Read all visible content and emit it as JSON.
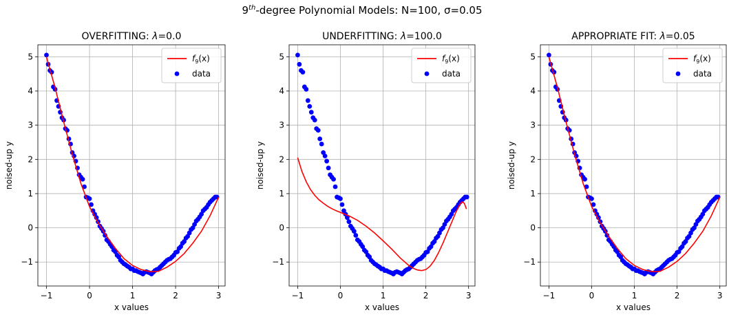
{
  "figure": {
    "suptitle": {
      "base": "9",
      "sup": "th",
      "rest": "-degree Polynomial Models: N=100, σ=0.05"
    }
  },
  "chart_data": [
    {
      "type": "scatter",
      "title": {
        "text": "OVERFITTING: ",
        "lambda": "λ",
        "value": "=0.0"
      },
      "xlabel": "x values",
      "ylabel": "noised-up y",
      "xlim": [
        -1.2,
        3.15
      ],
      "ylim": [
        -1.7,
        5.35
      ],
      "xticks": [
        -1,
        0,
        1,
        2,
        3
      ],
      "yticks": [
        -1,
        0,
        1,
        2,
        3,
        4,
        5
      ],
      "grid": true,
      "legend": {
        "position": "top-right",
        "entries": [
          {
            "label": {
              "f": "f",
              "sub": "9",
              "arg": "(x)"
            },
            "kind": "line",
            "color": "#ff0000"
          },
          {
            "label": "data",
            "kind": "marker",
            "color": "#0000ff"
          }
        ]
      },
      "series": [
        {
          "name": "data",
          "kind": "scatter",
          "color": "#0000ff",
          "x": [
            -1.0,
            -0.96,
            -0.92,
            -0.88,
            -0.84,
            -0.8,
            -0.76,
            -0.72,
            -0.68,
            -0.64,
            -0.6,
            -0.56,
            -0.52,
            -0.48,
            -0.44,
            -0.4,
            -0.36,
            -0.32,
            -0.28,
            -0.24,
            -0.2,
            -0.16,
            -0.12,
            -0.08,
            -0.04,
            0.0,
            0.04,
            0.08,
            0.12,
            0.16,
            0.2,
            0.24,
            0.28,
            0.32,
            0.36,
            0.4,
            0.44,
            0.48,
            0.52,
            0.56,
            0.6,
            0.64,
            0.68,
            0.72,
            0.76,
            0.8,
            0.84,
            0.88,
            0.92,
            0.96,
            1.0,
            1.04,
            1.08,
            1.12,
            1.16,
            1.2,
            1.24,
            1.28,
            1.32,
            1.36,
            1.4,
            1.44,
            1.48,
            1.52,
            1.56,
            1.6,
            1.64,
            1.68,
            1.72,
            1.76,
            1.8,
            1.84,
            1.88,
            1.92,
            1.96,
            2.0,
            2.04,
            2.08,
            2.12,
            2.16,
            2.2,
            2.24,
            2.28,
            2.32,
            2.36,
            2.4,
            2.44,
            2.48,
            2.52,
            2.56,
            2.6,
            2.64,
            2.68,
            2.72,
            2.76,
            2.8,
            2.84,
            2.88,
            2.92,
            2.96
          ],
          "y": [
            5.05,
            4.78,
            4.6,
            4.55,
            4.12,
            4.05,
            3.72,
            3.55,
            3.38,
            3.22,
            3.15,
            2.9,
            2.85,
            2.6,
            2.45,
            2.2,
            2.1,
            1.95,
            1.75,
            1.55,
            1.48,
            1.42,
            1.2,
            0.9,
            0.88,
            0.85,
            0.68,
            0.5,
            0.4,
            0.3,
            0.18,
            0.05,
            -0.02,
            -0.1,
            -0.22,
            -0.35,
            -0.4,
            -0.48,
            -0.55,
            -0.65,
            -0.7,
            -0.8,
            -0.85,
            -0.95,
            -1.0,
            -1.05,
            -1.08,
            -1.12,
            -1.15,
            -1.2,
            -1.2,
            -1.25,
            -1.25,
            -1.28,
            -1.3,
            -1.32,
            -1.35,
            -1.3,
            -1.28,
            -1.3,
            -1.32,
            -1.35,
            -1.3,
            -1.25,
            -1.22,
            -1.2,
            -1.15,
            -1.1,
            -1.05,
            -1.0,
            -0.95,
            -0.92,
            -0.9,
            -0.85,
            -0.8,
            -0.72,
            -0.7,
            -0.6,
            -0.55,
            -0.45,
            -0.4,
            -0.3,
            -0.25,
            -0.15,
            -0.05,
            0.0,
            0.1,
            0.2,
            0.25,
            0.32,
            0.4,
            0.5,
            0.55,
            0.6,
            0.68,
            0.75,
            0.8,
            0.85,
            0.9,
            0.9
          ]
        },
        {
          "name": "f9",
          "kind": "line",
          "color": "#ff0000",
          "x": [
            -1.0,
            -0.8,
            -0.6,
            -0.4,
            -0.2,
            0.0,
            0.2,
            0.4,
            0.6,
            0.8,
            1.0,
            1.2,
            1.4,
            1.5,
            1.6,
            1.8,
            2.0,
            2.2,
            2.4,
            2.6,
            2.8,
            3.0
          ],
          "y": [
            5.0,
            4.1,
            3.1,
            2.15,
            1.3,
            0.62,
            0.15,
            -0.25,
            -0.6,
            -0.9,
            -1.1,
            -1.22,
            -1.28,
            -1.28,
            -1.27,
            -1.15,
            -0.98,
            -0.75,
            -0.45,
            -0.1,
            0.35,
            0.9
          ]
        }
      ]
    },
    {
      "type": "scatter",
      "title": {
        "text": "UNDERFITTING: ",
        "lambda": "λ",
        "value": "=100.0"
      },
      "xlabel": "x values",
      "ylabel": "noised-up y",
      "xlim": [
        -1.2,
        3.15
      ],
      "ylim": [
        -1.7,
        5.35
      ],
      "xticks": [
        -1,
        0,
        1,
        2,
        3
      ],
      "yticks": [
        -1,
        0,
        1,
        2,
        3,
        4,
        5
      ],
      "grid": true,
      "legend": {
        "position": "top-right",
        "entries": [
          {
            "label": {
              "f": "f",
              "sub": "9",
              "arg": "(x)"
            },
            "kind": "line",
            "color": "#ff0000"
          },
          {
            "label": "data",
            "kind": "marker",
            "color": "#0000ff"
          }
        ]
      },
      "series": [
        {
          "name": "data",
          "kind": "scatter",
          "color": "#0000ff",
          "x": [
            -1.0,
            -0.96,
            -0.92,
            -0.88,
            -0.84,
            -0.8,
            -0.76,
            -0.72,
            -0.68,
            -0.64,
            -0.6,
            -0.56,
            -0.52,
            -0.48,
            -0.44,
            -0.4,
            -0.36,
            -0.32,
            -0.28,
            -0.24,
            -0.2,
            -0.16,
            -0.12,
            -0.08,
            -0.04,
            0.0,
            0.04,
            0.08,
            0.12,
            0.16,
            0.2,
            0.24,
            0.28,
            0.32,
            0.36,
            0.4,
            0.44,
            0.48,
            0.52,
            0.56,
            0.6,
            0.64,
            0.68,
            0.72,
            0.76,
            0.8,
            0.84,
            0.88,
            0.92,
            0.96,
            1.0,
            1.04,
            1.08,
            1.12,
            1.16,
            1.2,
            1.24,
            1.28,
            1.32,
            1.36,
            1.4,
            1.44,
            1.48,
            1.52,
            1.56,
            1.6,
            1.64,
            1.68,
            1.72,
            1.76,
            1.8,
            1.84,
            1.88,
            1.92,
            1.96,
            2.0,
            2.04,
            2.08,
            2.12,
            2.16,
            2.2,
            2.24,
            2.28,
            2.32,
            2.36,
            2.4,
            2.44,
            2.48,
            2.52,
            2.56,
            2.6,
            2.64,
            2.68,
            2.72,
            2.76,
            2.8,
            2.84,
            2.88,
            2.92,
            2.96
          ],
          "y": [
            5.05,
            4.78,
            4.6,
            4.55,
            4.12,
            4.05,
            3.72,
            3.55,
            3.38,
            3.22,
            3.15,
            2.9,
            2.85,
            2.6,
            2.45,
            2.2,
            2.1,
            1.95,
            1.75,
            1.55,
            1.48,
            1.42,
            1.2,
            0.9,
            0.88,
            0.85,
            0.68,
            0.5,
            0.4,
            0.3,
            0.18,
            0.05,
            -0.02,
            -0.1,
            -0.22,
            -0.35,
            -0.4,
            -0.48,
            -0.55,
            -0.65,
            -0.7,
            -0.8,
            -0.85,
            -0.95,
            -1.0,
            -1.05,
            -1.08,
            -1.12,
            -1.15,
            -1.2,
            -1.2,
            -1.25,
            -1.25,
            -1.28,
            -1.3,
            -1.32,
            -1.35,
            -1.3,
            -1.28,
            -1.3,
            -1.32,
            -1.35,
            -1.3,
            -1.25,
            -1.22,
            -1.2,
            -1.15,
            -1.1,
            -1.05,
            -1.0,
            -0.95,
            -0.92,
            -0.9,
            -0.85,
            -0.8,
            -0.72,
            -0.7,
            -0.6,
            -0.55,
            -0.45,
            -0.4,
            -0.3,
            -0.25,
            -0.15,
            -0.05,
            0.0,
            0.1,
            0.2,
            0.25,
            0.32,
            0.4,
            0.5,
            0.55,
            0.6,
            0.68,
            0.75,
            0.8,
            0.85,
            0.9,
            0.9
          ]
        },
        {
          "name": "f9",
          "kind": "line",
          "color": "#ff0000",
          "x": [
            -1.0,
            -0.9,
            -0.8,
            -0.7,
            -0.6,
            -0.5,
            -0.4,
            -0.3,
            -0.2,
            -0.1,
            0.0,
            0.2,
            0.4,
            0.6,
            0.8,
            1.0,
            1.2,
            1.4,
            1.6,
            1.7,
            1.8,
            1.9,
            2.0,
            2.1,
            2.2,
            2.3,
            2.4,
            2.5,
            2.6,
            2.7,
            2.8,
            2.85,
            2.9,
            2.95
          ],
          "y": [
            2.05,
            1.65,
            1.35,
            1.12,
            0.95,
            0.82,
            0.72,
            0.63,
            0.56,
            0.5,
            0.45,
            0.35,
            0.22,
            0.05,
            -0.15,
            -0.38,
            -0.62,
            -0.88,
            -1.1,
            -1.18,
            -1.23,
            -1.25,
            -1.22,
            -1.12,
            -0.95,
            -0.72,
            -0.45,
            -0.15,
            0.15,
            0.45,
            0.7,
            0.76,
            0.72,
            0.55
          ]
        }
      ]
    },
    {
      "type": "scatter",
      "title": {
        "text": "APPROPRIATE FIT: ",
        "lambda": "λ",
        "value": "=0.05"
      },
      "xlabel": "x values",
      "ylabel": "noised-up y",
      "xlim": [
        -1.2,
        3.15
      ],
      "ylim": [
        -1.7,
        5.35
      ],
      "xticks": [
        -1,
        0,
        1,
        2,
        3
      ],
      "yticks": [
        -1,
        0,
        1,
        2,
        3,
        4,
        5
      ],
      "grid": true,
      "legend": {
        "position": "top-right",
        "entries": [
          {
            "label": {
              "f": "f",
              "sub": "9",
              "arg": "(x)"
            },
            "kind": "line",
            "color": "#ff0000"
          },
          {
            "label": "data",
            "kind": "marker",
            "color": "#0000ff"
          }
        ]
      },
      "series": [
        {
          "name": "data",
          "kind": "scatter",
          "color": "#0000ff",
          "x": [
            -1.0,
            -0.96,
            -0.92,
            -0.88,
            -0.84,
            -0.8,
            -0.76,
            -0.72,
            -0.68,
            -0.64,
            -0.6,
            -0.56,
            -0.52,
            -0.48,
            -0.44,
            -0.4,
            -0.36,
            -0.32,
            -0.28,
            -0.24,
            -0.2,
            -0.16,
            -0.12,
            -0.08,
            -0.04,
            0.0,
            0.04,
            0.08,
            0.12,
            0.16,
            0.2,
            0.24,
            0.28,
            0.32,
            0.36,
            0.4,
            0.44,
            0.48,
            0.52,
            0.56,
            0.6,
            0.64,
            0.68,
            0.72,
            0.76,
            0.8,
            0.84,
            0.88,
            0.92,
            0.96,
            1.0,
            1.04,
            1.08,
            1.12,
            1.16,
            1.2,
            1.24,
            1.28,
            1.32,
            1.36,
            1.4,
            1.44,
            1.48,
            1.52,
            1.56,
            1.6,
            1.64,
            1.68,
            1.72,
            1.76,
            1.8,
            1.84,
            1.88,
            1.92,
            1.96,
            2.0,
            2.04,
            2.08,
            2.12,
            2.16,
            2.2,
            2.24,
            2.28,
            2.32,
            2.36,
            2.4,
            2.44,
            2.48,
            2.52,
            2.56,
            2.6,
            2.64,
            2.68,
            2.72,
            2.76,
            2.8,
            2.84,
            2.88,
            2.92,
            2.96
          ],
          "y": [
            5.05,
            4.78,
            4.6,
            4.55,
            4.12,
            4.05,
            3.72,
            3.55,
            3.38,
            3.22,
            3.15,
            2.9,
            2.85,
            2.6,
            2.45,
            2.2,
            2.1,
            1.95,
            1.75,
            1.55,
            1.48,
            1.42,
            1.2,
            0.9,
            0.88,
            0.85,
            0.68,
            0.5,
            0.4,
            0.3,
            0.18,
            0.05,
            -0.02,
            -0.1,
            -0.22,
            -0.35,
            -0.4,
            -0.48,
            -0.55,
            -0.65,
            -0.7,
            -0.8,
            -0.85,
            -0.95,
            -1.0,
            -1.05,
            -1.08,
            -1.12,
            -1.15,
            -1.2,
            -1.2,
            -1.25,
            -1.25,
            -1.28,
            -1.3,
            -1.32,
            -1.35,
            -1.3,
            -1.28,
            -1.3,
            -1.32,
            -1.35,
            -1.3,
            -1.25,
            -1.22,
            -1.2,
            -1.15,
            -1.1,
            -1.05,
            -1.0,
            -0.95,
            -0.92,
            -0.9,
            -0.85,
            -0.8,
            -0.72,
            -0.7,
            -0.6,
            -0.55,
            -0.45,
            -0.4,
            -0.3,
            -0.25,
            -0.15,
            -0.05,
            0.0,
            0.1,
            0.2,
            0.25,
            0.32,
            0.4,
            0.5,
            0.55,
            0.6,
            0.68,
            0.75,
            0.8,
            0.85,
            0.9,
            0.9
          ]
        },
        {
          "name": "f9",
          "kind": "line",
          "color": "#ff0000",
          "x": [
            -1.0,
            -0.8,
            -0.6,
            -0.4,
            -0.2,
            0.0,
            0.2,
            0.4,
            0.6,
            0.8,
            1.0,
            1.2,
            1.4,
            1.5,
            1.6,
            1.8,
            2.0,
            2.2,
            2.4,
            2.6,
            2.8,
            3.0
          ],
          "y": [
            5.0,
            4.1,
            3.1,
            2.15,
            1.3,
            0.62,
            0.15,
            -0.25,
            -0.6,
            -0.9,
            -1.1,
            -1.22,
            -1.28,
            -1.28,
            -1.27,
            -1.15,
            -0.98,
            -0.75,
            -0.45,
            -0.1,
            0.35,
            0.9
          ]
        }
      ]
    }
  ]
}
